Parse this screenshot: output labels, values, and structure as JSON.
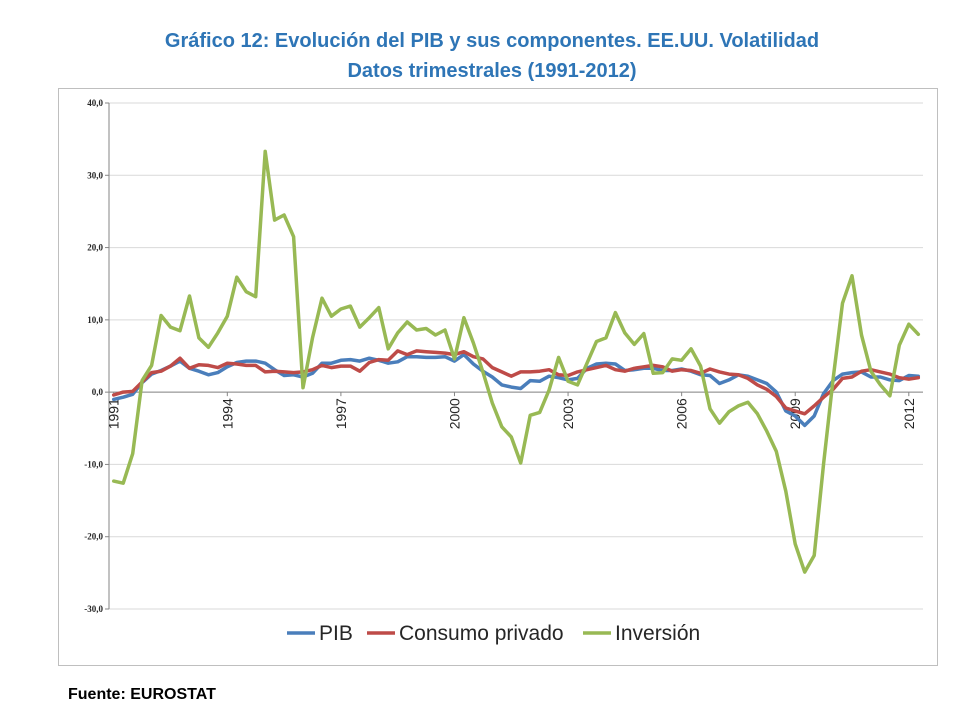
{
  "title_line1": "Gráfico 12: Evolución del PIB y sus componentes. EE.UU. Volatilidad",
  "title_line2": "Datos trimestrales (1991-2012)",
  "source": "Fuente: EUROSTAT",
  "chart_data": {
    "type": "line",
    "x_start_year": 1991,
    "points_per_year": 4,
    "ylim": [
      -30,
      40
    ],
    "yticks": [
      "-30,0",
      "-20,0",
      "-10,0",
      "0,0",
      "10,0",
      "20,0",
      "30,0",
      "40,0"
    ],
    "ytick_values": [
      -30,
      -20,
      -10,
      0,
      10,
      20,
      30,
      40
    ],
    "xtick_labels": [
      "1991",
      "1994",
      "1997",
      "2000",
      "2003",
      "2006",
      "2009",
      "2012"
    ],
    "grid": true,
    "legend_position": "bottom",
    "series": [
      {
        "name": "PIB",
        "color": "#4a7ebb",
        "values": [
          -1.0,
          -0.7,
          -0.3,
          1.3,
          2.5,
          3.0,
          3.6,
          4.3,
          3.3,
          2.9,
          2.4,
          2.7,
          3.5,
          4.1,
          4.3,
          4.3,
          4.0,
          3.1,
          2.3,
          2.4,
          2.1,
          2.6,
          4.0,
          4.0,
          4.4,
          4.5,
          4.3,
          4.7,
          4.4,
          4.0,
          4.2,
          4.9,
          4.9,
          4.8,
          4.8,
          4.9,
          4.3,
          5.2,
          3.9,
          2.9,
          2.1,
          1.0,
          0.7,
          0.5,
          1.6,
          1.5,
          2.2,
          2.0,
          1.7,
          1.9,
          3.3,
          3.9,
          4.0,
          3.9,
          3.0,
          3.1,
          3.3,
          3.3,
          3.0,
          3.0,
          3.2,
          2.9,
          2.4,
          2.3,
          1.2,
          1.7,
          2.4,
          2.2,
          1.7,
          1.2,
          0.0,
          -2.6,
          -3.3,
          -4.6,
          -3.3,
          -0.2,
          1.6,
          2.5,
          2.7,
          2.8,
          2.1,
          2.1,
          1.7,
          1.6,
          2.3,
          2.2
        ]
      },
      {
        "name": "Consumo privado",
        "color": "#be4b48",
        "values": [
          -0.4,
          0.0,
          0.1,
          1.4,
          2.7,
          2.9,
          3.6,
          4.7,
          3.3,
          3.8,
          3.7,
          3.4,
          4.0,
          3.9,
          3.7,
          3.7,
          2.8,
          2.9,
          2.8,
          2.7,
          2.8,
          3.1,
          3.7,
          3.4,
          3.6,
          3.6,
          2.9,
          4.1,
          4.5,
          4.4,
          5.7,
          5.2,
          5.7,
          5.6,
          5.5,
          5.4,
          5.2,
          5.6,
          4.9,
          4.6,
          3.4,
          2.8,
          2.2,
          2.8,
          2.8,
          2.9,
          3.1,
          2.4,
          2.3,
          2.8,
          3.1,
          3.4,
          3.7,
          3.1,
          2.9,
          3.3,
          3.5,
          3.7,
          3.5,
          2.9,
          3.1,
          3.0,
          2.6,
          3.2,
          2.8,
          2.5,
          2.4,
          1.9,
          1.0,
          0.4,
          -0.6,
          -2.2,
          -2.6,
          -3.0,
          -1.9,
          -0.7,
          0.4,
          1.9,
          2.1,
          2.9,
          3.1,
          2.8,
          2.5,
          2.0,
          1.8,
          2.0
        ]
      },
      {
        "name": "Inversión",
        "color": "#98b954",
        "values": [
          -12.3,
          -12.6,
          -8.5,
          1.6,
          3.7,
          10.6,
          9.0,
          8.5,
          13.3,
          7.5,
          6.2,
          8.2,
          10.5,
          15.9,
          13.9,
          13.2,
          33.3,
          23.8,
          24.5,
          21.5,
          0.6,
          7.5,
          13.0,
          10.5,
          11.5,
          11.9,
          9.0,
          10.3,
          11.7,
          6.0,
          8.2,
          9.7,
          8.6,
          8.8,
          7.9,
          8.6,
          4.6,
          10.3,
          6.8,
          2.8,
          -1.5,
          -4.8,
          -6.2,
          -9.8,
          -3.2,
          -2.8,
          0.3,
          4.8,
          1.5,
          1.0,
          4.0,
          7.0,
          7.5,
          11.0,
          8.2,
          6.6,
          8.1,
          2.6,
          2.7,
          4.6,
          4.4,
          6.0,
          3.6,
          -2.3,
          -4.3,
          -2.7,
          -1.9,
          -1.4,
          -3.0,
          -5.4,
          -8.2,
          -13.7,
          -21.0,
          -24.9,
          -22.6,
          -9.9,
          1.8,
          12.3,
          16.1,
          7.9,
          2.9,
          1.0,
          -0.5,
          6.5,
          9.4,
          8.0
        ]
      }
    ]
  }
}
